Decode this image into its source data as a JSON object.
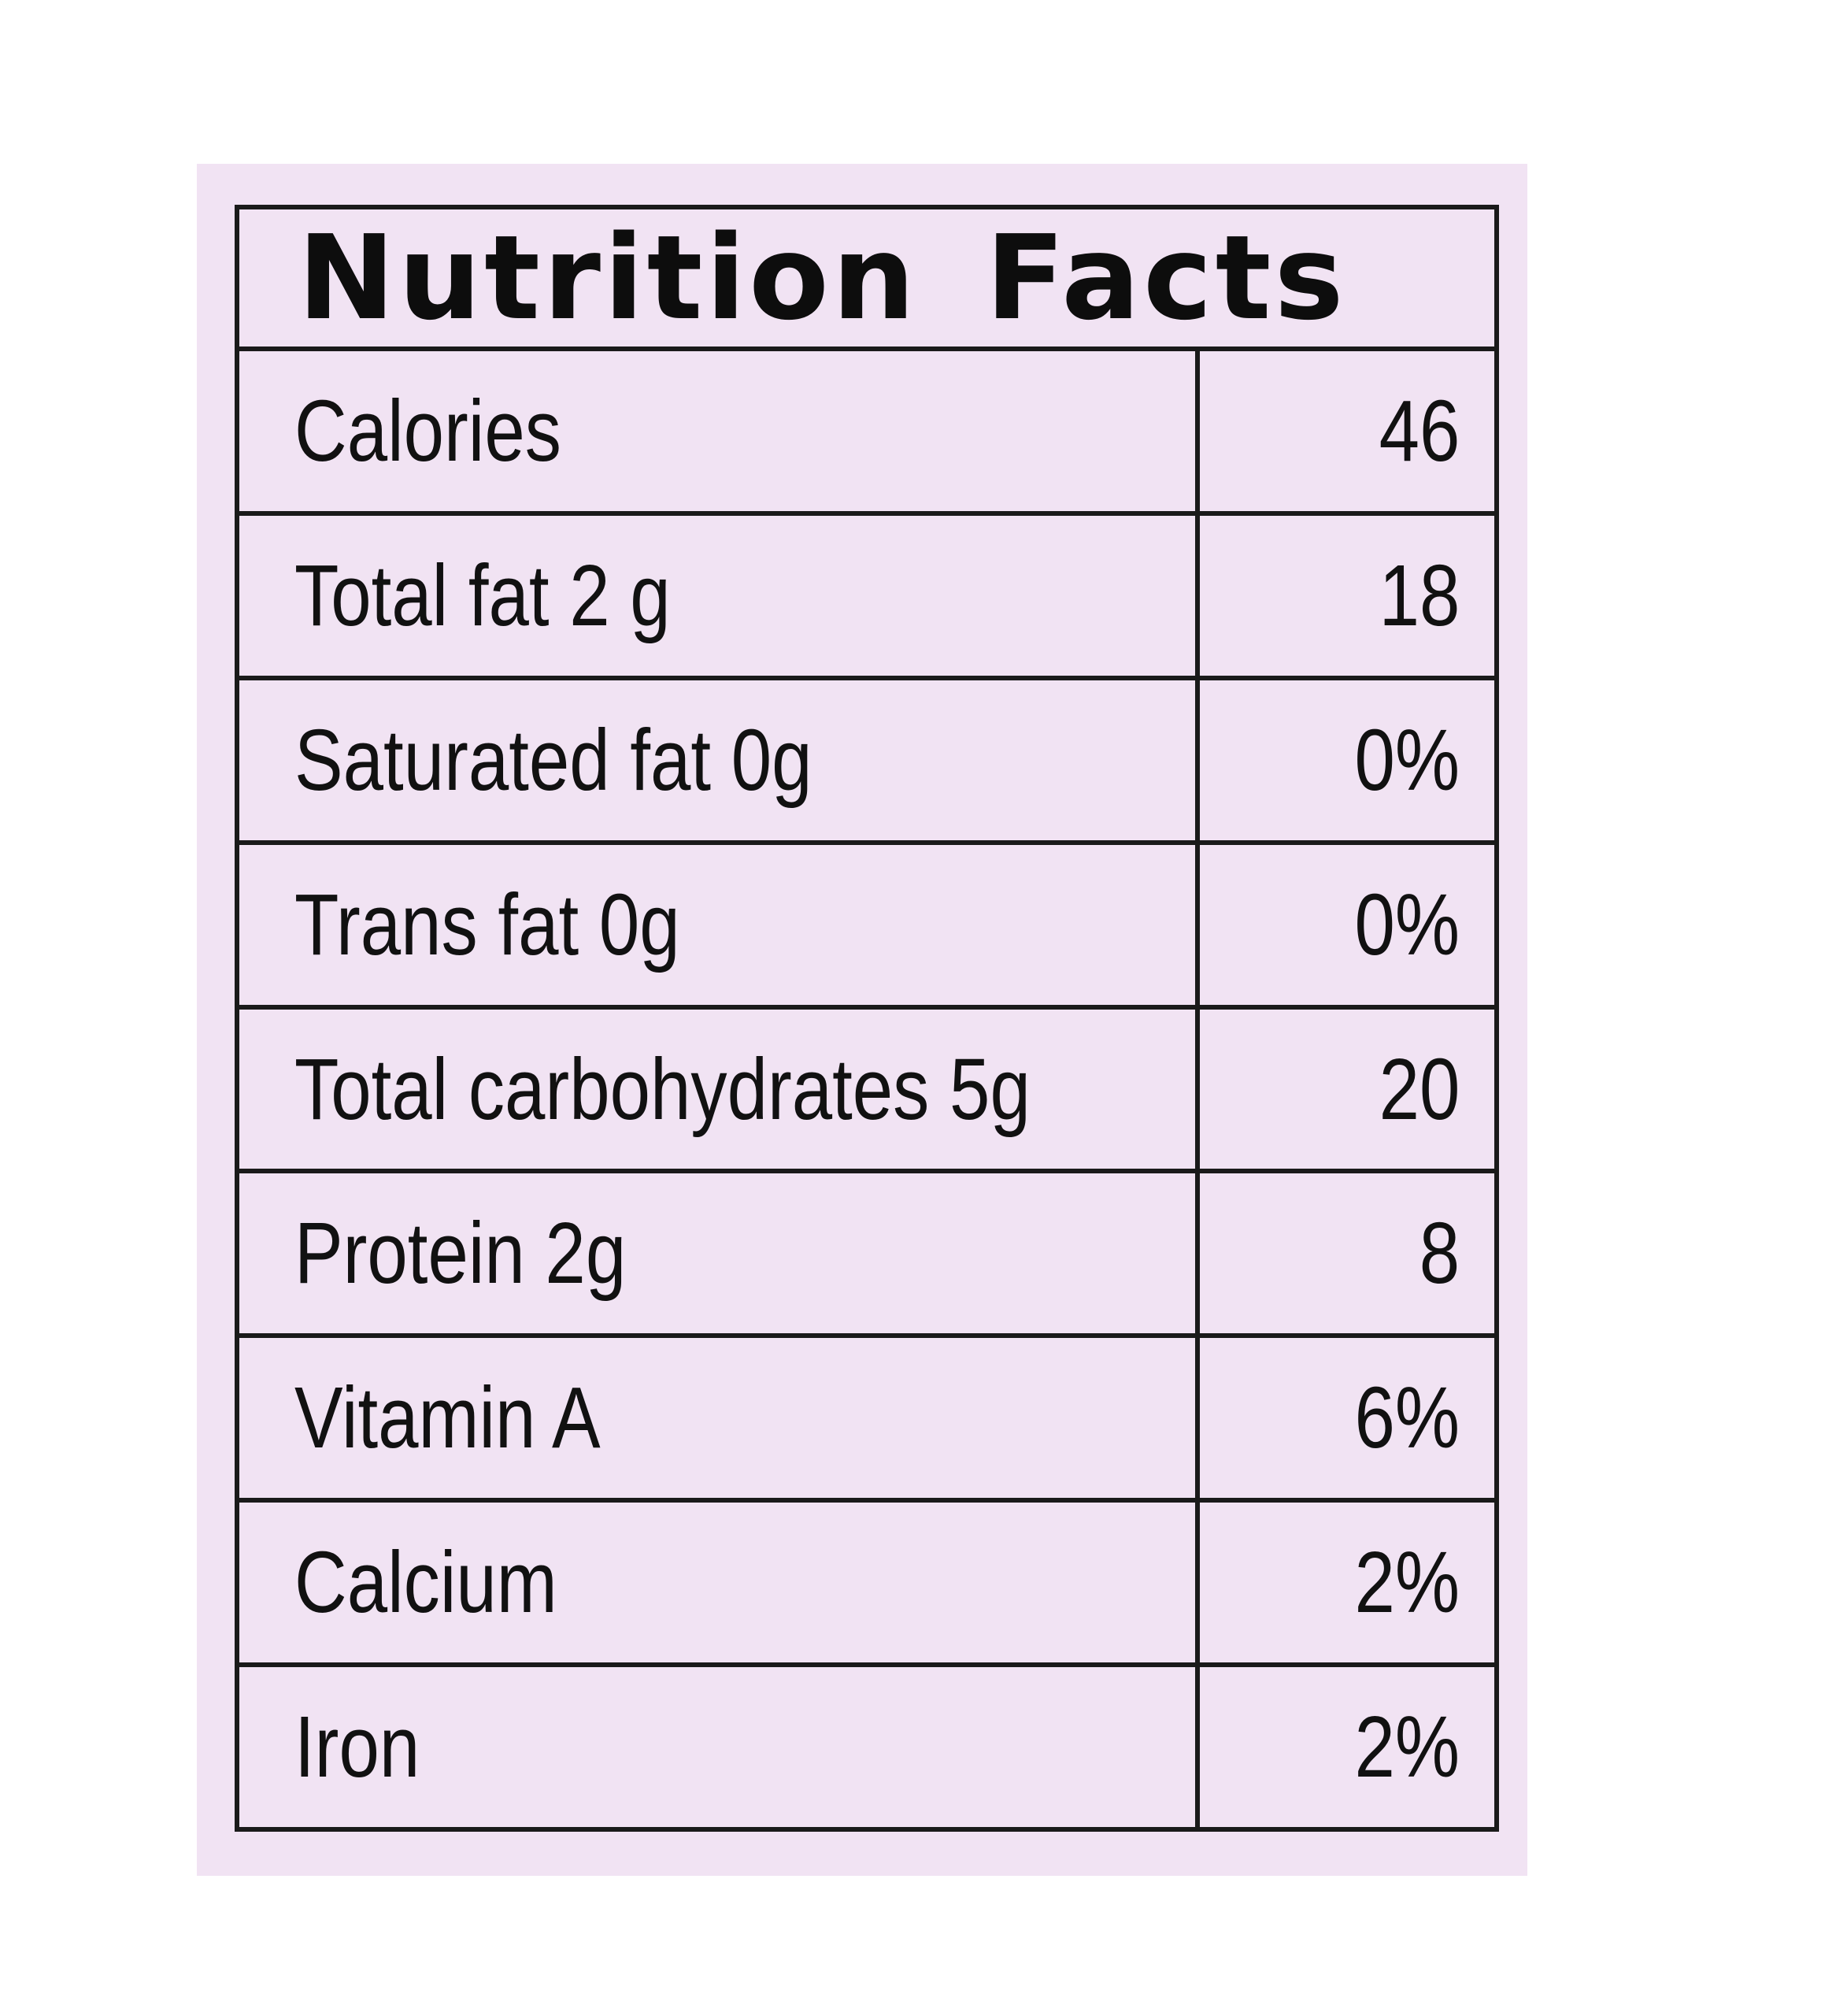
{
  "label": {
    "title": "Nutrition Facts",
    "colors": {
      "card_background": "#f1e3f3",
      "border": "#1a1a1a",
      "text": "#111111"
    },
    "rows": [
      {
        "name": "Calories",
        "value": "46"
      },
      {
        "name": "Total fat 2 g",
        "value": "18"
      },
      {
        "name": "Saturated fat 0g",
        "value": "0%"
      },
      {
        "name": "Trans fat 0g",
        "value": "0%"
      },
      {
        "name": "Total carbohydrates 5g",
        "value": "20"
      },
      {
        "name": "Protein 2g",
        "value": "8"
      },
      {
        "name": "Vitamin A",
        "value": "6%"
      },
      {
        "name": "Calcium",
        "value": "2%"
      },
      {
        "name": "Iron",
        "value": "2%"
      }
    ]
  }
}
